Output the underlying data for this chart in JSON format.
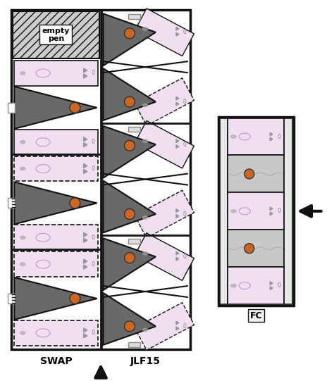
{
  "fig_width": 4.74,
  "fig_height": 5.41,
  "dpi": 100,
  "bg": "#ffffff",
  "pen_pink": "#f0dff0",
  "pen_pink_light": "#eedded",
  "gray_wedge": "#696969",
  "gray_wedge_dark": "#4a4a4a",
  "orange": "#cc6622",
  "black": "#111111",
  "gray_handle": "#aaaaaa",
  "hatch_bg": "#cccccc",
  "wavy_bg": "#c8c8c8",
  "label_swap": "SWAP",
  "label_jlf": "JLF15",
  "label_fc": "FC",
  "empty_pen": "empty\npen"
}
